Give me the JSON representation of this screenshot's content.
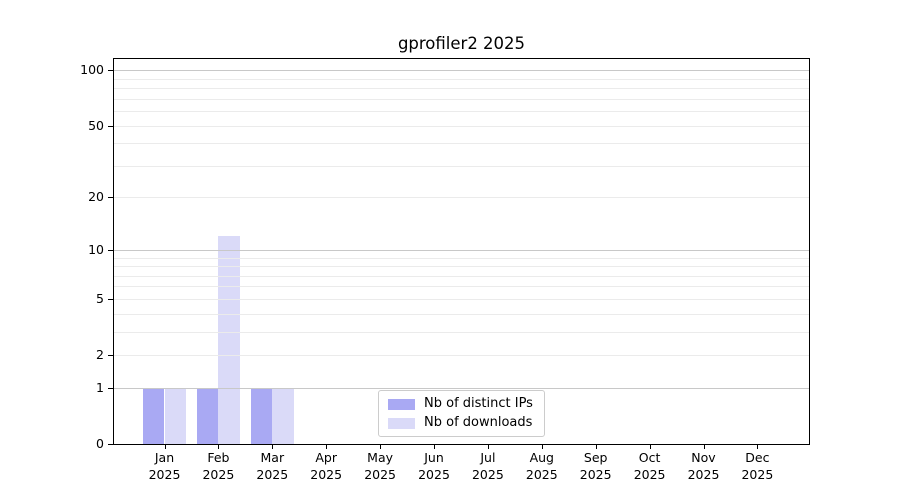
{
  "chart_data": {
    "type": "bar",
    "title": "gprofiler2 2025",
    "categories": [
      "Jan",
      "Feb",
      "Mar",
      "Apr",
      "May",
      "Jun",
      "Jul",
      "Aug",
      "Sep",
      "Oct",
      "Nov",
      "Dec"
    ],
    "category_year": "2025",
    "series": [
      {
        "name": "Nb of distinct IPs",
        "color": "#a9a9f3",
        "values": [
          1,
          1,
          1,
          0,
          0,
          0,
          0,
          0,
          0,
          0,
          0,
          0
        ]
      },
      {
        "name": "Nb of downloads",
        "color": "#dadaf8",
        "values": [
          1,
          12,
          1,
          0,
          0,
          0,
          0,
          0,
          0,
          0,
          0,
          0
        ]
      }
    ],
    "xlabel": "",
    "ylabel": "",
    "y_axis": {
      "scale": "log1p",
      "ticks": [
        0,
        1,
        2,
        5,
        10,
        20,
        50,
        100
      ],
      "major_gridlines": [
        1,
        10,
        100
      ],
      "minor_gridlines": [
        2,
        3,
        4,
        5,
        6,
        7,
        8,
        9,
        20,
        30,
        40,
        50,
        60,
        70,
        80,
        90
      ],
      "max": 115
    },
    "grid": true,
    "legend_position": "lower center"
  },
  "colors": {
    "spine": "#000000",
    "major_grid": "#c8c8c8",
    "minor_grid": "#ebebeb",
    "text": "#000000",
    "legend_border": "#cccccc",
    "background": "#ffffff"
  }
}
